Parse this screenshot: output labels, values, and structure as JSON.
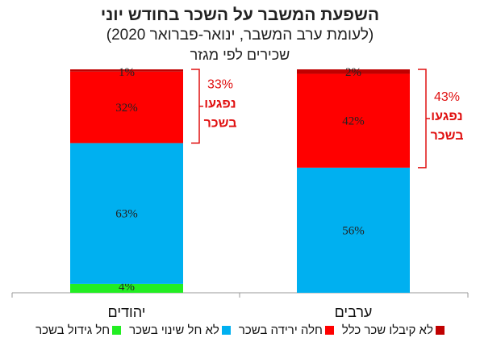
{
  "chart_data": {
    "type": "bar",
    "stacked": true,
    "title": "השפעת המשבר על השכר בחודש יוני",
    "subtitle": "(לעומת ערב המשבר, ינואר-פברואר 2020)",
    "note": "שכירים לפי מגזר",
    "categories": [
      "יהודים",
      "ערבים"
    ],
    "ylim": [
      0,
      100
    ],
    "grid": false,
    "legend_position": "bottom",
    "series": [
      {
        "name": "חל גידול בשכר",
        "color": "#22ee22",
        "values": [
          4,
          0
        ],
        "labels": [
          "4%",
          ""
        ]
      },
      {
        "name": "לא חל שינוי בשכר",
        "color": "#00b0f0",
        "values": [
          63,
          56
        ],
        "labels": [
          "63%",
          "56%"
        ]
      },
      {
        "name": "חלה ירידה בשכר",
        "color": "#ff0000",
        "values": [
          32,
          42
        ],
        "labels": [
          "32%",
          "42%"
        ]
      },
      {
        "name": "לא קיבלו שכר כלל",
        "color": "#c00000",
        "values": [
          1,
          2
        ],
        "labels": [
          "1%",
          "2%"
        ]
      }
    ],
    "annotations": [
      {
        "category": "יהודים",
        "percent": "33%",
        "line1": "נפגעו",
        "line2": "בשכר",
        "from_value": 67,
        "to_value": 100
      },
      {
        "category": "ערבים",
        "percent": "43%",
        "line1": "נפגעו",
        "line2": "בשכר",
        "from_value": 56,
        "to_value": 100
      }
    ]
  }
}
